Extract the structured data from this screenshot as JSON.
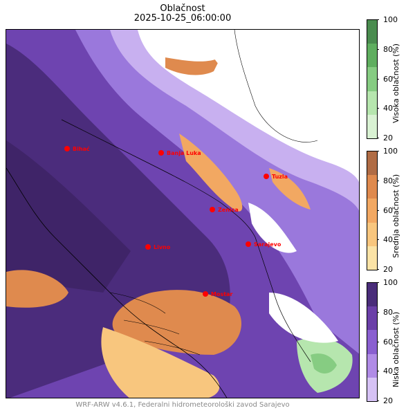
{
  "title": "Oblačnost",
  "subtitle": "2025-10-25_06:00:00",
  "footer": "WRF-ARW v4.6.1, Federalni hidrometeorološki zavod Sarajevo",
  "cities": [
    {
      "name": "Bihać"
    },
    {
      "name": "Banja Luka"
    },
    {
      "name": "Tuzla"
    },
    {
      "name": "Zenica"
    },
    {
      "name": "Sarajevo"
    },
    {
      "name": "Livno"
    },
    {
      "name": "Mostar"
    }
  ],
  "colorbars": [
    {
      "label": "Visoka oblačnost (%)",
      "ticks": [
        "100",
        "80",
        "60",
        "40",
        "20"
      ],
      "colors": [
        "#4a8c4f",
        "#5fae5f",
        "#86cc82",
        "#b6e6ae",
        "#d9f2d3"
      ]
    },
    {
      "label": "Srednja oblačnost (%)",
      "ticks": [
        "100",
        "80",
        "60",
        "40",
        "20"
      ],
      "colors": [
        "#b06c45",
        "#df8a4e",
        "#f2a862",
        "#f8c67e",
        "#fbe3a6"
      ]
    },
    {
      "label": "Niska oblačnost (%)",
      "ticks": [
        "100",
        "80",
        "60",
        "40",
        "20"
      ],
      "colors": [
        "#4a2d7a",
        "#6b3fa8",
        "#8a5fd0",
        "#b08be6",
        "#d6c2f5"
      ]
    }
  ],
  "city_color": "#ff0000"
}
